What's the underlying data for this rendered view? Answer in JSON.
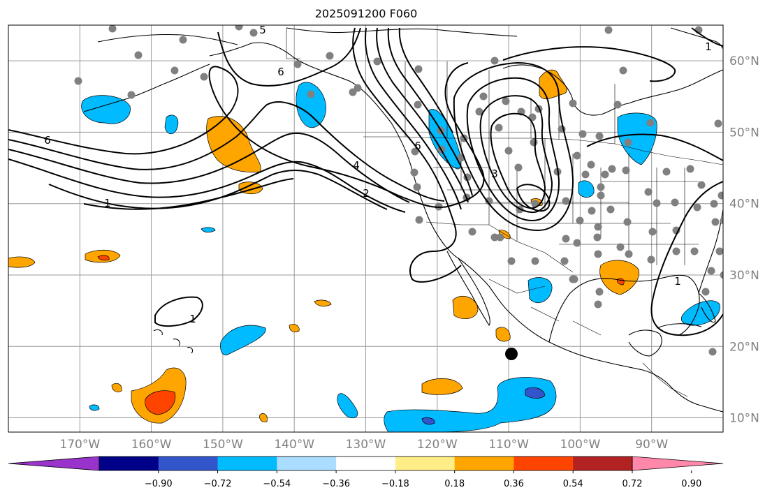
{
  "title": "2025091200 F060",
  "map": {
    "lon_range": [
      -180,
      -80
    ],
    "lat_range": [
      8,
      65
    ],
    "lon_ticks": [
      {
        "value": -170,
        "label": "170°W"
      },
      {
        "value": -160,
        "label": "160°W"
      },
      {
        "value": -150,
        "label": "150°W"
      },
      {
        "value": -140,
        "label": "140°W"
      },
      {
        "value": -130,
        "label": "130°W"
      },
      {
        "value": -120,
        "label": "120°W"
      },
      {
        "value": -110,
        "label": "110°W"
      },
      {
        "value": -100,
        "label": "100°W"
      },
      {
        "value": -90,
        "label": "90°W"
      }
    ],
    "lat_ticks": [
      {
        "value": 60,
        "label": "60°N"
      },
      {
        "value": 50,
        "label": "50°N"
      },
      {
        "value": 40,
        "label": "40°N"
      },
      {
        "value": 30,
        "label": "30°N"
      },
      {
        "value": 20,
        "label": "20°N"
      },
      {
        "value": 10,
        "label": "10°N"
      }
    ],
    "contour_labels": [
      "6",
      "6",
      "1",
      "4",
      "2",
      "6",
      "3",
      "1",
      "1",
      "5",
      "1"
    ],
    "station_color": "#808080",
    "marker_color": "#000000"
  },
  "colorbar": {
    "colors": [
      "#9933cc",
      "#000088",
      "#3355cc",
      "#00bbff",
      "#aaddff",
      "#ffffff",
      "#ffee88",
      "#ffa500",
      "#ff4400",
      "#b22222",
      "#ff88aa"
    ],
    "tick_labels": [
      "−0.90",
      "−0.72",
      "−0.54",
      "−0.36",
      "−0.18",
      "0.18",
      "0.36",
      "0.54",
      "0.72",
      "0.90"
    ]
  }
}
